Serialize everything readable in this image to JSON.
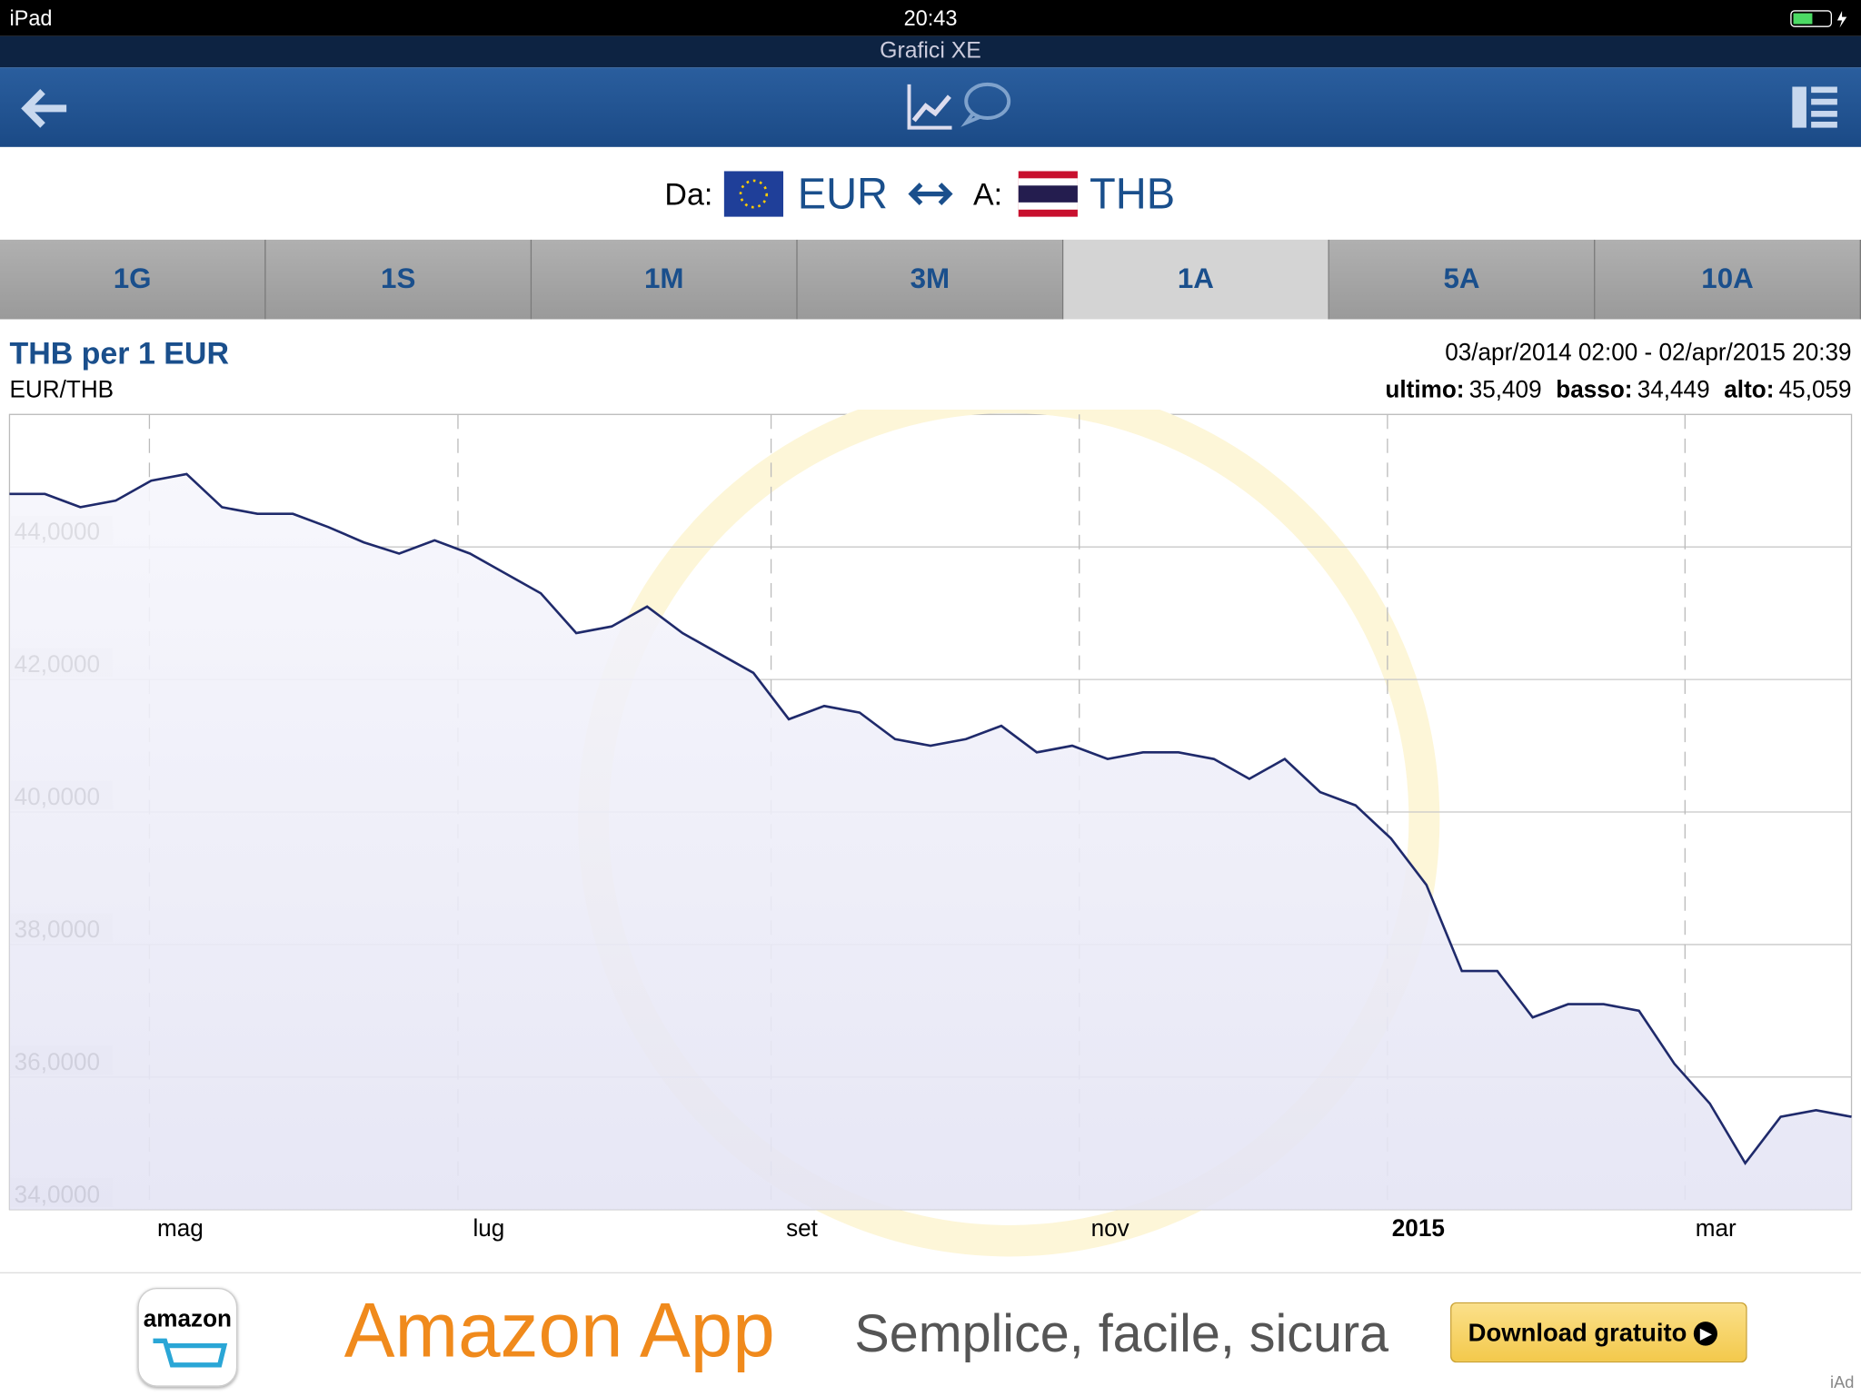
{
  "status_bar": {
    "device": "iPad",
    "time": "20:43"
  },
  "app_title": "Grafici XE",
  "selector": {
    "from_label": "Da:",
    "from": "EUR",
    "to_label": "A:",
    "to": "THB"
  },
  "tabs": [
    "1G",
    "1S",
    "1M",
    "3M",
    "1A",
    "5A",
    "10A"
  ],
  "chart_header": {
    "title": "THB per 1 EUR",
    "pair": "EUR/THB",
    "range": "03/apr/2014 02:00 - 02/apr/2015 20:39",
    "stats": [
      {
        "label": "ultimo:",
        "value": "35,409"
      },
      {
        "label": "basso:",
        "value": "34,449"
      },
      {
        "label": "alto:",
        "value": "45,059"
      }
    ]
  },
  "chart_data": {
    "type": "line",
    "color": "#1f2a6b",
    "values": [
      44.8,
      44.8,
      44.6,
      44.7,
      45.0,
      45.1,
      44.6,
      44.5,
      44.5,
      44.3,
      44.07,
      43.9,
      44.1,
      43.9,
      43.6,
      43.3,
      42.7,
      42.8,
      43.1,
      42.7,
      42.4,
      42.1,
      41.4,
      41.6,
      41.5,
      41.1,
      41.0,
      41.1,
      41.3,
      40.9,
      41.0,
      40.8,
      40.9,
      40.9,
      40.8,
      40.5,
      40.8,
      40.3,
      40.1,
      39.6,
      38.9,
      37.6,
      37.6,
      36.9,
      37.1,
      37.1,
      37.0,
      36.2,
      35.6,
      34.7,
      35.4,
      35.5,
      35.4
    ],
    "xlim": [
      0,
      52
    ],
    "xticks": [
      {
        "value": 3.95,
        "label": "mag"
      },
      {
        "value": 12.66,
        "label": "lug"
      },
      {
        "value": 21.5,
        "label": "set"
      },
      {
        "value": 30.2,
        "label": "nov"
      },
      {
        "value": 38.9,
        "label": "2015"
      },
      {
        "value": 47.3,
        "label": "mar"
      }
    ],
    "ylim": [
      34,
      46
    ],
    "yticks": [
      {
        "value": 34,
        "label": "34,0000"
      },
      {
        "value": 36,
        "label": "36,0000"
      },
      {
        "value": 38,
        "label": "38,0000"
      },
      {
        "value": 40,
        "label": "40,0000"
      },
      {
        "value": 42,
        "label": "42,0000"
      },
      {
        "value": 44,
        "label": "44,0000"
      }
    ],
    "grid": true
  },
  "ad": {
    "brand": "amazon",
    "headline": "Amazon App",
    "tagline": "Semplice, facile, sicura",
    "button": "Download gratuito",
    "tag": "iAd"
  }
}
